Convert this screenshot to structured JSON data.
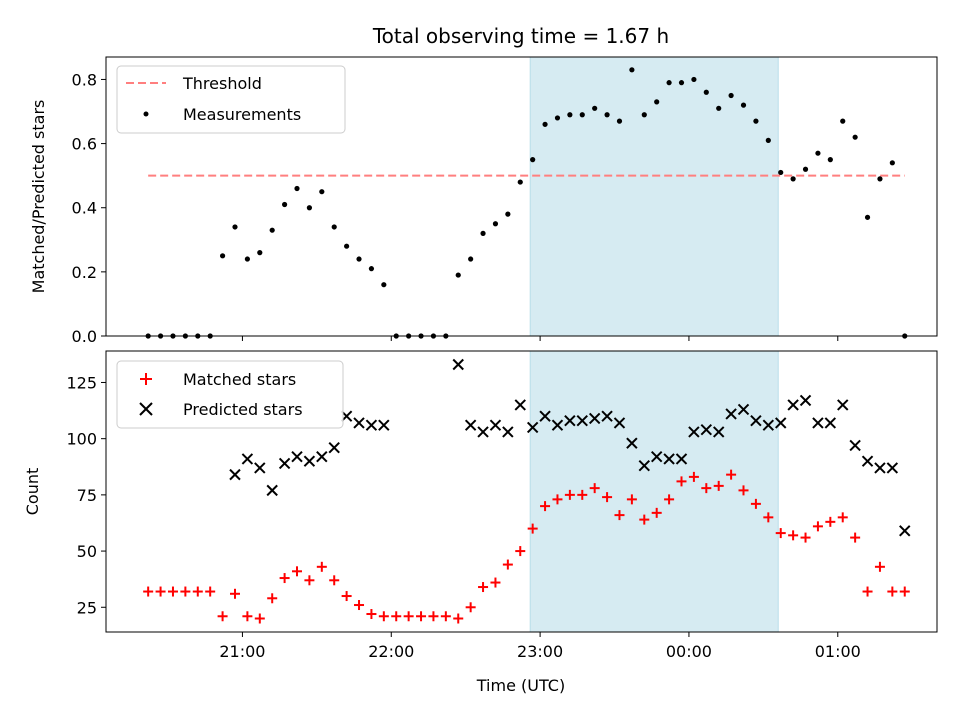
{
  "figure": {
    "title": "Total observing time = 1.67 h",
    "xlabel": "Time (UTC)",
    "x_ticks": [
      "21:00",
      "22:00",
      "23:00",
      "00:00",
      "01:00"
    ],
    "highlight_span": {
      "start": "22:56",
      "end": "00:36",
      "color": "#add8e6"
    }
  },
  "chart_data": [
    {
      "type": "scatter",
      "ylabel": "Matched/Predicted stars",
      "ylim": [
        0,
        0.87
      ],
      "y_ticks": [
        "0.0",
        "0.2",
        "0.4",
        "0.6",
        "0.8"
      ],
      "legend": {
        "position": "top-left",
        "entries": [
          "Threshold",
          "Measurements"
        ]
      },
      "x": [
        "20:22",
        "20:27",
        "20:32",
        "20:37",
        "20:42",
        "20:47",
        "20:52",
        "20:57",
        "21:02",
        "21:07",
        "21:12",
        "21:17",
        "21:22",
        "21:27",
        "21:32",
        "21:37",
        "21:42",
        "21:47",
        "21:52",
        "21:57",
        "22:02",
        "22:07",
        "22:12",
        "22:17",
        "22:22",
        "22:27",
        "22:32",
        "22:37",
        "22:42",
        "22:47",
        "22:52",
        "22:57",
        "23:02",
        "23:07",
        "23:12",
        "23:17",
        "23:22",
        "23:27",
        "23:32",
        "23:37",
        "23:42",
        "23:47",
        "23:52",
        "23:57",
        "00:02",
        "00:07",
        "00:12",
        "00:17",
        "00:22",
        "00:27",
        "00:32",
        "00:37",
        "00:42",
        "00:47",
        "00:52",
        "00:57",
        "01:02",
        "01:07",
        "01:12",
        "01:17",
        "01:22",
        "01:27"
      ],
      "series": [
        {
          "name": "Threshold",
          "style": "dashed-line",
          "color": "#ff7f7f",
          "x": [
            "20:22",
            "01:27"
          ],
          "values": [
            0.5,
            0.5
          ]
        },
        {
          "name": "Measurements",
          "style": "dot",
          "color": "#000000",
          "values": [
            0.0,
            0.0,
            0.0,
            0.0,
            0.0,
            0.0,
            0.25,
            0.34,
            0.24,
            0.26,
            0.33,
            0.41,
            0.46,
            0.4,
            0.45,
            0.34,
            0.28,
            0.24,
            0.21,
            0.16,
            0.0,
            0.0,
            0.0,
            0.0,
            0.0,
            0.19,
            0.24,
            0.32,
            0.35,
            0.38,
            0.48,
            0.55,
            0.66,
            0.68,
            0.69,
            0.69,
            0.71,
            0.69,
            0.67,
            0.83,
            0.69,
            0.73,
            0.79,
            0.79,
            0.8,
            0.76,
            0.71,
            0.75,
            0.72,
            0.67,
            0.61,
            0.51,
            0.49,
            0.52,
            0.57,
            0.55,
            0.67,
            0.62,
            0.37,
            0.49,
            0.54,
            0.0
          ]
        }
      ]
    },
    {
      "type": "scatter",
      "ylabel": "Count",
      "ylim": [
        14,
        139
      ],
      "y_ticks": [
        "25",
        "50",
        "75",
        "100",
        "125"
      ],
      "legend": {
        "position": "top-left",
        "entries": [
          "Matched stars",
          "Predicted stars"
        ]
      },
      "x": [
        "20:22",
        "20:27",
        "20:32",
        "20:37",
        "20:42",
        "20:47",
        "20:52",
        "20:57",
        "21:02",
        "21:07",
        "21:12",
        "21:17",
        "21:22",
        "21:27",
        "21:32",
        "21:37",
        "21:42",
        "21:47",
        "21:52",
        "21:57",
        "22:02",
        "22:07",
        "22:12",
        "22:17",
        "22:22",
        "22:27",
        "22:32",
        "22:37",
        "22:42",
        "22:47",
        "22:52",
        "22:57",
        "23:02",
        "23:07",
        "23:12",
        "23:17",
        "23:22",
        "23:27",
        "23:32",
        "23:37",
        "23:42",
        "23:47",
        "23:52",
        "23:57",
        "00:02",
        "00:07",
        "00:12",
        "00:17",
        "00:22",
        "00:27",
        "00:32",
        "00:37",
        "00:42",
        "00:47",
        "00:52",
        "00:57",
        "01:02",
        "01:07",
        "01:12",
        "01:17",
        "01:22",
        "01:27"
      ],
      "series": [
        {
          "name": "Matched stars",
          "marker": "plus",
          "color": "#ff0000",
          "values": [
            32,
            32,
            32,
            32,
            32,
            32,
            21,
            31,
            21,
            20,
            29,
            38,
            41,
            37,
            43,
            37,
            30,
            26,
            22,
            21,
            21,
            21,
            21,
            21,
            21,
            20,
            25,
            34,
            36,
            44,
            50,
            60,
            70,
            73,
            75,
            75,
            78,
            74,
            66,
            73,
            64,
            67,
            73,
            81,
            83,
            78,
            79,
            84,
            77,
            71,
            65,
            58,
            57,
            56,
            61,
            63,
            65,
            56,
            32,
            43,
            32,
            32
          ]
        },
        {
          "name": "Predicted stars",
          "marker": "x",
          "color": "#000000",
          "x": [
            "20:57",
            "21:02",
            "21:07",
            "21:12",
            "21:17",
            "21:22",
            "21:27",
            "21:32",
            "21:37",
            "21:42",
            "21:47",
            "21:52",
            "21:57",
            "22:27",
            "22:32",
            "22:37",
            "22:42",
            "22:47",
            "22:52",
            "22:57",
            "23:02",
            "23:07",
            "23:12",
            "23:17",
            "23:22",
            "23:27",
            "23:32",
            "23:37",
            "23:42",
            "23:47",
            "23:52",
            "23:57",
            "00:02",
            "00:07",
            "00:12",
            "00:17",
            "00:22",
            "00:27",
            "00:32",
            "00:37",
            "00:42",
            "00:47",
            "00:52",
            "00:57",
            "01:02",
            "01:07",
            "01:12",
            "01:17",
            "01:22",
            "01:27"
          ],
          "values": [
            84,
            91,
            87,
            77,
            89,
            92,
            90,
            92,
            96,
            110,
            107,
            106,
            106,
            133,
            106,
            103,
            106,
            103,
            115,
            105,
            110,
            106,
            108,
            108,
            109,
            110,
            107,
            98,
            88,
            92,
            91,
            91,
            103,
            104,
            103,
            111,
            113,
            108,
            106,
            107,
            115,
            117,
            107,
            107,
            115,
            97,
            90,
            87,
            87,
            59
          ]
        }
      ]
    }
  ]
}
